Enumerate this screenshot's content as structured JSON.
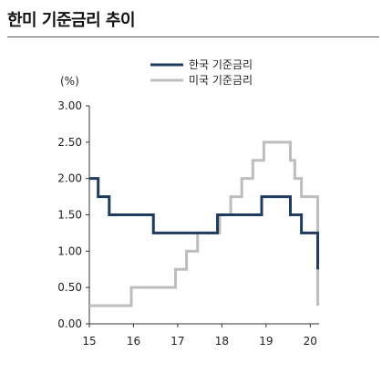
{
  "title": "한미 기준금리 추이",
  "chart_data": {
    "type": "line",
    "step": true,
    "unit_label": "(%)",
    "xlim": [
      15,
      20.2
    ],
    "ylim": [
      0,
      3
    ],
    "x_ticks": [
      15,
      16,
      17,
      18,
      19,
      20
    ],
    "x_tick_labels": [
      "15",
      "16",
      "17",
      "18",
      "19",
      "20"
    ],
    "y_ticks": [
      0,
      0.5,
      1,
      1.5,
      2,
      2.5,
      3
    ],
    "y_tick_labels": [
      "0.00",
      "0.50",
      "1.00",
      "1.50",
      "2.00",
      "2.50",
      "3.00"
    ],
    "legend_position": "top-right",
    "series": [
      {
        "name": "한국 기준금리",
        "color": "#1f3b5e",
        "points": [
          [
            15.0,
            2.0
          ],
          [
            15.2,
            1.75
          ],
          [
            15.45,
            1.5
          ],
          [
            16.45,
            1.25
          ],
          [
            17.9,
            1.5
          ],
          [
            18.9,
            1.75
          ],
          [
            19.55,
            1.5
          ],
          [
            19.8,
            1.25
          ],
          [
            20.17,
            0.75
          ]
        ]
      },
      {
        "name": "미국 기준금리",
        "color": "#bdbdbd",
        "points": [
          [
            15.0,
            0.25
          ],
          [
            15.95,
            0.5
          ],
          [
            16.95,
            0.75
          ],
          [
            17.2,
            1.0
          ],
          [
            17.45,
            1.25
          ],
          [
            17.95,
            1.5
          ],
          [
            18.2,
            1.75
          ],
          [
            18.45,
            2.0
          ],
          [
            18.7,
            2.25
          ],
          [
            18.95,
            2.5
          ],
          [
            19.55,
            2.25
          ],
          [
            19.65,
            2.0
          ],
          [
            19.8,
            1.75
          ],
          [
            20.17,
            0.25
          ]
        ]
      }
    ]
  }
}
